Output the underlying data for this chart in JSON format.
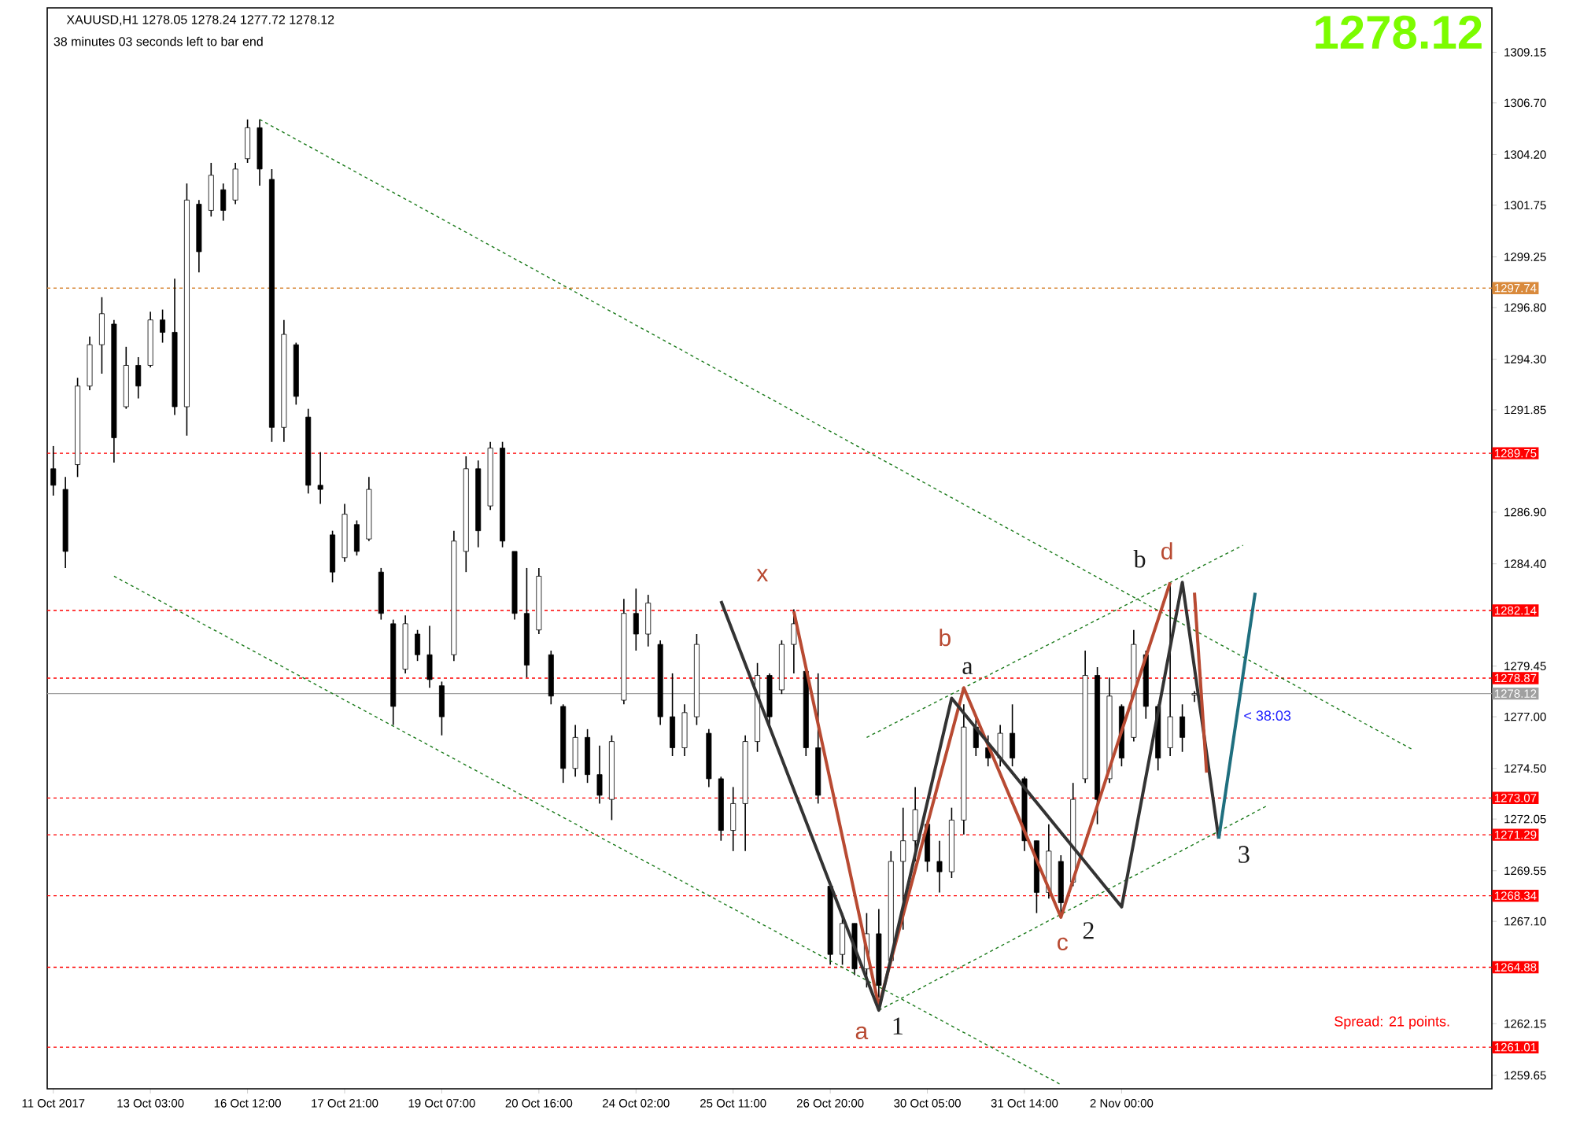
{
  "chart_data": {
    "type": "candlestick",
    "title": "XAUUSD,H1  1278.05 1278.24 1277.72 1278.12",
    "subtitle": "38 minutes 03 seconds left to bar end",
    "color": "#000000",
    "categories": [
      "11 Oct 2017",
      null,
      null,
      null,
      null,
      null,
      null,
      null,
      "13 Oct 03:00",
      null,
      null,
      null,
      null,
      null,
      null,
      null,
      "16 Oct 12:00",
      null,
      null,
      null,
      null,
      null,
      null,
      null,
      "17 Oct 21:00",
      null,
      null,
      null,
      null,
      null,
      null,
      null,
      "19 Oct 07:00",
      null,
      null,
      null,
      null,
      null,
      null,
      null,
      "20 Oct 16:00",
      null,
      null,
      null,
      null,
      null,
      null,
      null,
      "24 Oct 02:00",
      null,
      null,
      null,
      null,
      null,
      null,
      null,
      "25 Oct 11:00",
      null,
      null,
      null,
      null,
      null,
      null,
      null,
      "26 Oct 20:00",
      null,
      null,
      null,
      null,
      null,
      null,
      null,
      "30 Oct 05:00",
      null,
      null,
      null,
      null,
      null,
      null,
      null,
      "31 Oct 14:00",
      null,
      null,
      null,
      null,
      null,
      null,
      null,
      "2 Nov 00:00",
      null,
      null,
      null,
      null,
      null,
      null,
      null,
      null,
      null,
      null,
      null,
      null,
      null,
      null,
      null,
      null,
      null,
      null,
      null,
      null,
      null,
      null,
      null,
      null,
      null,
      null,
      null,
      null,
      null,
      null
    ],
    "ohlc": [
      [
        1289.0,
        1290.1,
        1287.7,
        1288.2
      ],
      [
        1288.0,
        1288.6,
        1284.2,
        1285.0
      ],
      [
        1289.2,
        1293.4,
        1288.6,
        1293.0
      ],
      [
        1293.0,
        1295.4,
        1292.8,
        1295.0
      ],
      [
        1295.0,
        1297.3,
        1293.6,
        1296.5
      ],
      [
        1296.0,
        1296.2,
        1289.3,
        1290.5
      ],
      [
        1292.0,
        1294.9,
        1291.9,
        1294.0
      ],
      [
        1294.0,
        1294.4,
        1292.4,
        1293.0
      ],
      [
        1294.0,
        1296.6,
        1293.9,
        1296.2
      ],
      [
        1296.2,
        1296.7,
        1295.1,
        1295.6
      ],
      [
        1295.6,
        1298.2,
        1291.6,
        1292.0
      ],
      [
        1292.0,
        1302.8,
        1290.6,
        1302.0
      ],
      [
        1301.8,
        1302.0,
        1298.5,
        1299.5
      ],
      [
        1301.5,
        1303.8,
        1301.2,
        1303.2
      ],
      [
        1302.5,
        1302.8,
        1301.0,
        1301.5
      ],
      [
        1302.0,
        1303.8,
        1301.8,
        1303.5
      ],
      [
        1304.0,
        1305.9,
        1303.8,
        1305.5
      ],
      [
        1305.5,
        1305.9,
        1302.7,
        1303.5
      ],
      [
        1303.0,
        1303.5,
        1290.3,
        1291.0
      ],
      [
        1291.0,
        1296.2,
        1290.3,
        1295.5
      ],
      [
        1295.0,
        1295.1,
        1292.1,
        1292.5
      ],
      [
        1291.5,
        1291.9,
        1287.8,
        1288.2
      ],
      [
        1288.2,
        1289.8,
        1287.3,
        1288.0
      ],
      [
        1285.8,
        1286.0,
        1283.5,
        1284.0
      ],
      [
        1284.7,
        1287.3,
        1284.5,
        1286.8
      ],
      [
        1286.3,
        1286.5,
        1284.8,
        1285.0
      ],
      [
        1285.6,
        1288.6,
        1285.5,
        1288.0
      ],
      [
        1284.0,
        1284.2,
        1281.7,
        1282.0
      ],
      [
        1281.5,
        1281.7,
        1276.6,
        1277.5
      ],
      [
        1279.3,
        1281.9,
        1279.1,
        1281.5
      ],
      [
        1281.0,
        1281.2,
        1279.7,
        1280.0
      ],
      [
        1280.0,
        1281.4,
        1278.4,
        1278.8
      ],
      [
        1278.5,
        1278.7,
        1276.1,
        1277.0
      ],
      [
        1280.0,
        1286.0,
        1279.7,
        1285.5
      ],
      [
        1285.0,
        1289.6,
        1284.0,
        1289.0
      ],
      [
        1289.0,
        1289.4,
        1285.2,
        1286.0
      ],
      [
        1287.2,
        1290.3,
        1287.0,
        1290.0
      ],
      [
        1290.0,
        1290.3,
        1285.2,
        1285.5
      ],
      [
        1285.0,
        1285.0,
        1281.7,
        1282.0
      ],
      [
        1282.0,
        1284.2,
        1278.9,
        1279.5
      ],
      [
        1281.2,
        1284.2,
        1281.0,
        1283.8
      ],
      [
        1280.0,
        1280.2,
        1277.6,
        1278.0
      ],
      [
        1277.5,
        1277.6,
        1273.8,
        1274.5
      ],
      [
        1274.5,
        1276.6,
        1274.1,
        1276.0
      ],
      [
        1276.0,
        1276.4,
        1273.8,
        1274.2
      ],
      [
        1274.2,
        1275.6,
        1272.8,
        1273.2
      ],
      [
        1273.0,
        1276.1,
        1272.0,
        1275.8
      ],
      [
        1277.8,
        1282.7,
        1277.6,
        1282.0
      ],
      [
        1282.0,
        1283.2,
        1280.2,
        1281.0
      ],
      [
        1281.0,
        1282.9,
        1280.4,
        1282.5
      ],
      [
        1280.5,
        1280.7,
        1276.6,
        1277.0
      ],
      [
        1277.0,
        1279.1,
        1275.1,
        1275.5
      ],
      [
        1275.5,
        1277.6,
        1275.1,
        1277.2
      ],
      [
        1277.0,
        1281.0,
        1276.6,
        1280.5
      ],
      [
        1276.2,
        1276.4,
        1273.6,
        1274.0
      ],
      [
        1274.0,
        1274.1,
        1271.0,
        1271.5
      ],
      [
        1271.5,
        1273.6,
        1270.5,
        1272.8
      ],
      [
        1272.8,
        1276.1,
        1270.5,
        1275.8
      ],
      [
        1275.8,
        1279.6,
        1275.3,
        1279.0
      ],
      [
        1279.0,
        1279.1,
        1276.6,
        1277.0
      ],
      [
        1278.3,
        1280.7,
        1278.1,
        1280.5
      ],
      [
        1280.5,
        1282.2,
        1279.1,
        1281.5
      ],
      [
        1279.2,
        1279.4,
        1275.1,
        1275.5
      ],
      [
        1275.5,
        1279.1,
        1272.8,
        1273.2
      ],
      [
        1268.8,
        1269.0,
        1265.0,
        1265.5
      ],
      [
        1265.5,
        1267.5,
        1265.0,
        1267.0
      ],
      [
        1267.0,
        1267.0,
        1264.5,
        1264.8
      ],
      [
        1264.8,
        1267.5,
        1263.9,
        1266.5
      ],
      [
        1266.5,
        1267.7,
        1263.4,
        1264.0
      ],
      [
        1265.2,
        1270.5,
        1265.0,
        1270.0
      ],
      [
        1270.0,
        1272.6,
        1266.7,
        1271.0
      ],
      [
        1271.0,
        1273.6,
        1270.0,
        1272.5
      ],
      [
        1271.8,
        1272.0,
        1269.5,
        1270.0
      ],
      [
        1270.0,
        1271.0,
        1268.5,
        1269.5
      ],
      [
        1269.5,
        1272.6,
        1269.2,
        1272.0
      ],
      [
        1272.0,
        1277.6,
        1271.3,
        1276.5
      ],
      [
        1276.5,
        1277.1,
        1275.1,
        1275.5
      ],
      [
        1275.5,
        1276.1,
        1274.6,
        1275.0
      ],
      [
        1275.0,
        1276.6,
        1274.6,
        1276.2
      ],
      [
        1276.2,
        1277.6,
        1274.6,
        1275.0
      ],
      [
        1274.0,
        1274.1,
        1270.5,
        1271.0
      ],
      [
        1271.0,
        1271.0,
        1267.5,
        1268.5
      ],
      [
        1268.5,
        1271.8,
        1268.2,
        1270.5
      ],
      [
        1270.0,
        1270.3,
        1267.3,
        1268.0
      ],
      [
        1269.0,
        1273.8,
        1268.8,
        1273.0
      ],
      [
        1274.0,
        1280.2,
        1273.8,
        1279.0
      ],
      [
        1279.0,
        1279.4,
        1271.8,
        1273.0
      ],
      [
        1274.0,
        1278.9,
        1273.8,
        1278.0
      ],
      [
        1277.5,
        1277.6,
        1274.6,
        1275.0
      ],
      [
        1276.0,
        1281.2,
        1275.8,
        1280.5
      ],
      [
        1280.0,
        1280.2,
        1276.9,
        1277.5
      ],
      [
        1277.5,
        1277.6,
        1274.4,
        1275.0
      ],
      [
        1275.5,
        1283.5,
        1275.1,
        1277.0
      ],
      [
        1277.0,
        1277.6,
        1275.3,
        1276.0
      ],
      [
        1278.05,
        1278.24,
        1277.72,
        1278.12
      ],
      null,
      null,
      null,
      null,
      null,
      null,
      null,
      null,
      null,
      null,
      null,
      null,
      null,
      null,
      null,
      null,
      null,
      null,
      null,
      null,
      null,
      null,
      null,
      null
    ],
    "series": [
      {
        "type": "line",
        "color": "#1a7a1a",
        "line_style": "dashed",
        "values": [
          null,
          null,
          null,
          null,
          null,
          null,
          null,
          null,
          null,
          null,
          null,
          null,
          null,
          null,
          null,
          null,
          null,
          1305.9,
          null,
          null,
          null,
          null,
          null,
          null,
          null,
          null,
          null,
          null,
          null,
          null,
          null,
          null,
          null,
          null,
          null,
          null,
          null,
          null,
          null,
          null,
          null,
          null,
          null,
          null,
          null,
          null,
          null,
          null,
          null,
          null,
          null,
          null,
          null,
          null,
          null,
          null,
          null,
          null,
          null,
          null,
          null,
          null,
          null,
          null,
          null,
          null,
          null,
          null,
          null,
          null,
          null,
          null,
          null,
          null,
          null,
          null,
          null,
          null,
          null,
          null,
          null,
          null,
          null,
          null,
          null,
          null,
          null,
          null,
          null,
          null,
          null,
          null,
          null,
          null,
          null,
          null,
          null,
          null,
          null,
          null,
          null,
          null,
          null,
          null,
          null,
          null,
          null,
          null,
          null,
          null,
          null,
          null,
          1275.4,
          null,
          null,
          null,
          null,
          null,
          null
        ]
      },
      {
        "type": "line",
        "color": "#1a7a1a",
        "line_style": "dashed",
        "values": [
          null,
          null,
          null,
          null,
          null,
          1283.8,
          null,
          null,
          null,
          null,
          null,
          null,
          null,
          null,
          null,
          null,
          null,
          null,
          null,
          null,
          null,
          null,
          null,
          null,
          null,
          null,
          null,
          null,
          null,
          null,
          null,
          null,
          null,
          null,
          null,
          null,
          null,
          null,
          null,
          null,
          null,
          null,
          null,
          null,
          null,
          null,
          null,
          null,
          null,
          null,
          null,
          null,
          null,
          null,
          null,
          null,
          null,
          null,
          null,
          null,
          null,
          null,
          null,
          null,
          null,
          null,
          null,
          null,
          null,
          null,
          null,
          null,
          null,
          null,
          null,
          null,
          null,
          null,
          null,
          null,
          null,
          null,
          null,
          1259.2,
          null,
          null,
          null,
          null,
          null,
          null,
          null,
          null,
          null,
          null,
          null,
          null,
          null,
          null,
          null,
          null,
          null,
          null,
          null,
          null,
          null,
          null,
          null,
          null,
          null,
          null,
          null,
          null,
          null,
          null,
          null,
          null,
          null,
          null,
          null
        ]
      },
      {
        "type": "line",
        "color": "#1a7a1a",
        "line_style": "dashed",
        "values": [
          null,
          null,
          null,
          null,
          null,
          null,
          null,
          null,
          null,
          null,
          null,
          null,
          null,
          null,
          null,
          null,
          null,
          null,
          null,
          null,
          null,
          null,
          null,
          null,
          null,
          null,
          null,
          null,
          null,
          null,
          null,
          null,
          null,
          null,
          null,
          null,
          null,
          null,
          null,
          null,
          null,
          null,
          null,
          null,
          null,
          null,
          null,
          null,
          null,
          null,
          null,
          null,
          null,
          null,
          null,
          null,
          null,
          null,
          null,
          null,
          null,
          null,
          null,
          null,
          null,
          null,
          null,
          null,
          1262.8,
          null,
          null,
          null,
          null,
          null,
          null,
          null,
          null,
          null,
          null,
          null,
          null,
          null,
          null,
          null,
          null,
          null,
          null,
          null,
          null,
          null,
          null,
          null,
          null,
          null,
          null,
          null,
          null,
          null,
          null,
          null,
          1272.7,
          null,
          null,
          null,
          null,
          null,
          null,
          null,
          null,
          null,
          null,
          null,
          null,
          null,
          null,
          null,
          null,
          null,
          null
        ]
      },
      {
        "type": "line",
        "color": "#1a7a1a",
        "line_style": "dashed",
        "values": [
          null,
          null,
          null,
          null,
          null,
          null,
          null,
          null,
          null,
          null,
          null,
          null,
          null,
          null,
          null,
          null,
          null,
          null,
          null,
          null,
          null,
          null,
          null,
          null,
          null,
          null,
          null,
          null,
          null,
          null,
          null,
          null,
          null,
          null,
          null,
          null,
          null,
          null,
          null,
          null,
          null,
          null,
          null,
          null,
          null,
          null,
          null,
          null,
          null,
          null,
          null,
          null,
          null,
          null,
          null,
          null,
          null,
          null,
          null,
          null,
          null,
          null,
          null,
          null,
          null,
          null,
          null,
          1276.0,
          null,
          null,
          null,
          null,
          null,
          null,
          null,
          null,
          null,
          null,
          null,
          null,
          null,
          null,
          null,
          null,
          null,
          null,
          null,
          null,
          null,
          null,
          null,
          null,
          null,
          null,
          null,
          null,
          null,
          null,
          1285.3,
          null,
          null,
          null,
          null,
          null,
          null,
          null,
          null,
          null,
          null,
          null,
          null,
          null,
          null,
          null,
          null,
          null,
          null,
          null,
          null
        ]
      },
      {
        "type": "line",
        "color": "#b84a32",
        "line_style": "solid",
        "values": [
          null,
          null,
          null,
          null,
          null,
          null,
          null,
          null,
          null,
          null,
          null,
          null,
          null,
          null,
          null,
          null,
          null,
          null,
          null,
          null,
          null,
          null,
          null,
          null,
          null,
          null,
          null,
          null,
          null,
          null,
          null,
          null,
          null,
          null,
          null,
          null,
          null,
          null,
          null,
          null,
          null,
          null,
          null,
          null,
          null,
          null,
          null,
          null,
          null,
          null,
          null,
          null,
          null,
          null,
          null,
          null,
          null,
          null,
          null,
          null,
          null,
          1282.1,
          null,
          null,
          null,
          null,
          null,
          null,
          1263.0,
          null,
          null,
          null,
          null,
          null,
          null,
          1278.4,
          null,
          null,
          null,
          null,
          null,
          null,
          null,
          1267.3,
          null,
          null,
          null,
          null,
          null,
          null,
          null,
          null,
          1283.5,
          null,
          null,
          null,
          null,
          null,
          null,
          null,
          null,
          null,
          null,
          null,
          null,
          null,
          null,
          null,
          null,
          null,
          null,
          null,
          null,
          null,
          null,
          null,
          null,
          null,
          null
        ]
      },
      {
        "type": "line",
        "color": "#333333",
        "line_style": "solid",
        "values": [
          null,
          null,
          null,
          null,
          null,
          null,
          null,
          null,
          null,
          null,
          null,
          null,
          null,
          null,
          null,
          null,
          null,
          null,
          null,
          null,
          null,
          null,
          null,
          null,
          null,
          null,
          null,
          null,
          null,
          null,
          null,
          null,
          null,
          null,
          null,
          null,
          null,
          null,
          null,
          null,
          null,
          null,
          null,
          null,
          null,
          null,
          null,
          null,
          null,
          null,
          null,
          null,
          null,
          null,
          null,
          1282.6,
          null,
          null,
          null,
          null,
          null,
          null,
          null,
          null,
          null,
          null,
          null,
          null,
          1262.8,
          null,
          null,
          null,
          null,
          null,
          1277.9,
          null,
          null,
          null,
          null,
          null,
          null,
          null,
          null,
          null,
          null,
          null,
          null,
          null,
          1267.8,
          null,
          null,
          null,
          null,
          1283.5,
          null,
          null,
          1271.1,
          null,
          null,
          null,
          null,
          null,
          null,
          null,
          null,
          null,
          null,
          null,
          null,
          null,
          null,
          null,
          null,
          null,
          null,
          null,
          null,
          null,
          null
        ]
      },
      {
        "type": "line",
        "color": "#b84a32",
        "line_style": "solid",
        "values": [
          null,
          null,
          null,
          null,
          null,
          null,
          null,
          null,
          null,
          null,
          null,
          null,
          null,
          null,
          null,
          null,
          null,
          null,
          null,
          null,
          null,
          null,
          null,
          null,
          null,
          null,
          null,
          null,
          null,
          null,
          null,
          null,
          null,
          null,
          null,
          null,
          null,
          null,
          null,
          null,
          null,
          null,
          null,
          null,
          null,
          null,
          null,
          null,
          null,
          null,
          null,
          null,
          null,
          null,
          null,
          null,
          null,
          null,
          null,
          null,
          null,
          null,
          null,
          null,
          null,
          null,
          null,
          null,
          null,
          null,
          null,
          null,
          null,
          null,
          null,
          null,
          null,
          null,
          null,
          null,
          null,
          null,
          null,
          null,
          null,
          null,
          null,
          null,
          null,
          null,
          null,
          null,
          null,
          null,
          1283.0,
          1274.3,
          null,
          null,
          null,
          null,
          null,
          null,
          null,
          null,
          null,
          null,
          null,
          null,
          null,
          null,
          null,
          null,
          null,
          null,
          null,
          null,
          null,
          null,
          null
        ]
      },
      {
        "type": "line",
        "color": "#1f6f7f",
        "line_style": "solid",
        "values": [
          null,
          null,
          null,
          null,
          null,
          null,
          null,
          null,
          null,
          null,
          null,
          null,
          null,
          null,
          null,
          null,
          null,
          null,
          null,
          null,
          null,
          null,
          null,
          null,
          null,
          null,
          null,
          null,
          null,
          null,
          null,
          null,
          null,
          null,
          null,
          null,
          null,
          null,
          null,
          null,
          null,
          null,
          null,
          null,
          null,
          null,
          null,
          null,
          null,
          null,
          null,
          null,
          null,
          null,
          null,
          null,
          null,
          null,
          null,
          null,
          null,
          null,
          null,
          null,
          null,
          null,
          null,
          null,
          null,
          null,
          null,
          null,
          null,
          null,
          null,
          null,
          null,
          null,
          null,
          null,
          null,
          null,
          null,
          null,
          null,
          null,
          null,
          null,
          null,
          null,
          null,
          null,
          null,
          null,
          null,
          null,
          1271.1,
          null,
          null,
          1283.0,
          null,
          null,
          null,
          null,
          null,
          null,
          null,
          null,
          null,
          null,
          null,
          null,
          null,
          null,
          null,
          null,
          null,
          null,
          null
        ]
      }
    ],
    "annotations": [
      "1278.12",
      "Spread: 21 points.",
      "x",
      "b",
      "d",
      "a",
      "c",
      "a",
      "b",
      "1",
      "2",
      "3",
      "< 38:03"
    ],
    "ref_lines": [
      {
        "axis": "y",
        "value": 1297.74,
        "label": "1297.74",
        "color": "#d98a3c",
        "line_style": "dashed"
      },
      {
        "axis": "y",
        "value": 1289.75,
        "label": "1289.75",
        "color": "#ff0000",
        "line_style": "dashed"
      },
      {
        "axis": "y",
        "value": 1282.14,
        "label": "1282.14",
        "color": "#ff0000",
        "line_style": "dashed"
      },
      {
        "axis": "y",
        "value": 1278.87,
        "label": "1278.87",
        "color": "#ff0000",
        "line_style": "dashed"
      },
      {
        "axis": "y",
        "value": 1278.12,
        "label": "1278.12",
        "color": "#a0a0a0",
        "line_style": "solid"
      },
      {
        "axis": "y",
        "value": 1273.07,
        "label": "1273.07",
        "color": "#ff0000",
        "line_style": "dashed"
      },
      {
        "axis": "y",
        "value": 1271.29,
        "label": "1271.29",
        "color": "#ff0000",
        "line_style": "dashed"
      },
      {
        "axis": "y",
        "value": 1268.34,
        "label": "1268.34",
        "color": "#ff0000",
        "line_style": "dashed"
      },
      {
        "axis": "y",
        "value": 1264.88,
        "label": "1264.88",
        "color": "#ff0000",
        "line_style": "dashed"
      },
      {
        "axis": "y",
        "value": 1261.01,
        "label": "1261.01",
        "color": "#ff0000",
        "line_style": "dashed"
      }
    ],
    "ylim": [
      1259.0,
      1311.3
    ],
    "yticks": [
      1309.15,
      {
        "value": 1306.7,
        "label": "1306.70"
      },
      {
        "value": 1304.2,
        "label": "1304.20"
      },
      1301.75,
      1299.25,
      {
        "value": 1296.8,
        "label": "1296.80"
      },
      {
        "value": 1294.3,
        "label": "1294.30"
      },
      1291.85,
      {
        "value": 1286.9,
        "label": "1286.90"
      },
      {
        "value": 1284.4,
        "label": "1284.40"
      },
      1279.45,
      {
        "value": 1277.0,
        "label": "1277.00"
      },
      {
        "value": 1274.5,
        "label": "1274.50"
      },
      1272.05,
      1269.55,
      {
        "value": 1267.1,
        "label": "1267.10"
      },
      1262.15,
      1259.65
    ]
  }
}
